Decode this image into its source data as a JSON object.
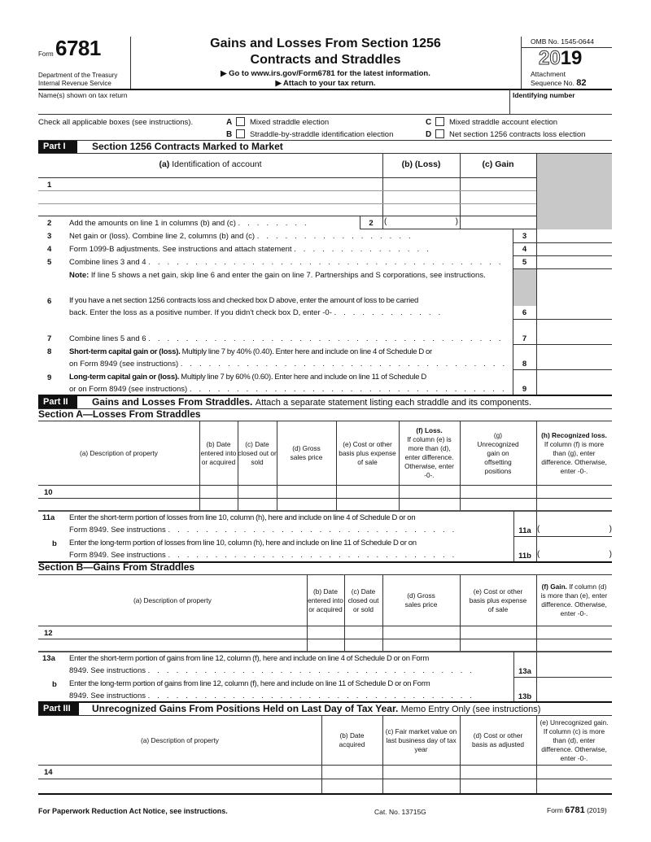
{
  "header": {
    "form_word": "Form",
    "form_number": "6781",
    "dept": "Department of the Treasury",
    "irs": "Internal Revenue Service",
    "title_line1": "Gains and Losses From Section 1256",
    "title_line2": "Contracts and Straddles",
    "goto": "▶ Go to www.irs.gov/Form6781 for the latest information.",
    "attach": "▶ Attach to your tax return.",
    "omb": "OMB No. 1545-0644",
    "year_outline": "20",
    "year_bold": "19",
    "attachment": "Attachment",
    "sequence": "Sequence No.",
    "sequence_no": "82"
  },
  "name_label": "Name(s) shown on tax return",
  "id_label": "Identifying number",
  "checkboxes": {
    "intro": "Check all applicable boxes (see instructions).",
    "items": [
      {
        "letter": "A",
        "label": "Mixed straddle election",
        "checked": false
      },
      {
        "letter": "B",
        "label": "Straddle-by-straddle identification election",
        "checked": false
      },
      {
        "letter": "C",
        "label": "Mixed straddle account election",
        "checked": false
      },
      {
        "letter": "D",
        "label": "Net section 1256 contracts loss election",
        "checked": false
      }
    ]
  },
  "part1": {
    "tag": "Part I",
    "title": "Section 1256 Contracts Marked to Market",
    "col_a_letter": "(a)",
    "col_a": "Identification of account",
    "col_b": "(b) (Loss)",
    "col_c": "(c) Gain",
    "line1": "1",
    "line2": {
      "num": "2",
      "text": "Add the amounts on line 1 in columns (b) and (c)"
    },
    "line3": {
      "num": "3",
      "text": "Net gain or (loss). Combine line 2, columns (b) and (c)"
    },
    "line4": {
      "num": "4",
      "text": "Form 1099-B adjustments. See instructions and attach statement"
    },
    "line5": {
      "num": "5",
      "text": "Combine lines 3 and 4"
    },
    "note_label": "Note:",
    "note": "If line 5 shows a net gain, skip line 6 and enter the gain on line 7. Partnerships and S corporations, see instructions.",
    "line6": {
      "num": "6",
      "text1": "If you have a net section 1256 contracts loss and checked box D above, enter the amount of loss to be carried",
      "text2": "back. Enter the loss as a positive number. If you didn't check box D, enter -0-"
    },
    "line7": {
      "num": "7",
      "text": "Combine lines 5 and 6"
    },
    "line8": {
      "num": "8",
      "bold": "Short-term capital gain or (loss).",
      "text1": "Multiply line 7 by 40% (0.40). Enter here and include on line 4 of Schedule D or",
      "text2": "on Form 8949 (see instructions)"
    },
    "line9": {
      "num": "9",
      "bold": "Long-term capital gain or (loss).",
      "text1": "Multiply line 7 by 60% (0.60). Enter here and include on line 11 of Schedule D",
      "text2": "or on Form 8949 (see instructions)"
    }
  },
  "part2": {
    "tag": "Part II",
    "title": "Gains and Losses From Straddles.",
    "subtitle": "Attach a separate statement listing each straddle and its components.",
    "secA": "Section A—Losses From Straddles",
    "secA_cols": {
      "a": "(a) Description of property",
      "b": "(b) Date entered into or acquired",
      "c": "(c) Date closed out or sold",
      "d": "(d) Gross sales price",
      "e": "(e) Cost or other basis plus expense of sale",
      "f_bold": "(f) Loss.",
      "f": "If column (e) is more than (d), enter difference. Otherwise, enter -0-.",
      "g": "(g) Unrecognized gain on offsetting positions",
      "h_bold": "(h) Recognized loss.",
      "h": "If column (f) is more than (g), enter difference. Otherwise, enter -0-."
    },
    "line10": "10",
    "line11a": {
      "num": "11a",
      "text1": "Enter the short-term portion of losses from line 10, column (h), here and include on line 4 of Schedule D or on",
      "text2": "Form 8949. See instructions"
    },
    "line11b": {
      "num": "b",
      "box": "11b",
      "text1": "Enter the long-term portion of losses from line 10, column (h), here and include on line 11 of Schedule D or on",
      "text2": "Form 8949. See instructions"
    },
    "secB": "Section B—Gains From Straddles",
    "secB_cols": {
      "a": "(a) Description of property",
      "b": "(b) Date entered into or acquired",
      "c": "(c) Date closed out or sold",
      "d": "(d) Gross sales price",
      "e": "(e) Cost or other basis plus expense of sale",
      "f_bold": "(f) Gain.",
      "f": "If column (d) is more than (e), enter difference. Otherwise, enter -0-."
    },
    "line12": "12",
    "line13a": {
      "num": "13a",
      "text1": "Enter the short-term portion of gains from line 12, column (f), here and include on line 4 of Schedule D or on Form",
      "text2": "8949. See instructions"
    },
    "line13b": {
      "num": "b",
      "box": "13b",
      "text1": "Enter the long-term portion of gains from line 12, column (f), here and include on line 11 of Schedule D or on Form",
      "text2": "8949. See instructions"
    }
  },
  "part3": {
    "tag": "Part III",
    "title": "Unrecognized Gains From Positions Held on Last Day of Tax Year.",
    "subtitle": "Memo Entry Only (see instructions)",
    "cols": {
      "a": "(a) Description of property",
      "b": "(b) Date acquired",
      "c": "(c) Fair market value on last business day of tax year",
      "d": "(d) Cost or other basis as adjusted",
      "e": "(e) Unrecognized gain. If column (c) is more than (d), enter difference. Otherwise, enter -0-."
    },
    "line14": "14"
  },
  "footer": {
    "left": "For Paperwork Reduction Act Notice, see instructions.",
    "cat": "Cat. No. 13715G",
    "form": "Form",
    "num": "6781",
    "year": "(2019)"
  }
}
